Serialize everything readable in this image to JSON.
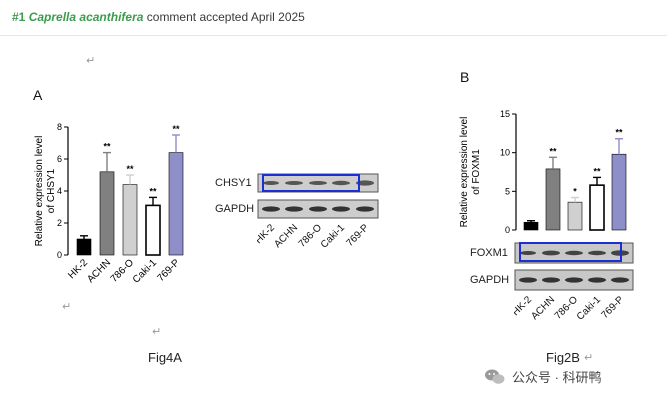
{
  "header": {
    "number": "#1",
    "species": "Caprella acanthifera",
    "rest": "comment accepted April 2025"
  },
  "return_glyph": "↵",
  "fig_a": {
    "letter": "A",
    "caption": "Fig4A",
    "ylabel_line1": "Relative expression level",
    "ylabel_line2": "of CHSY1",
    "yticks": [
      "0",
      "2",
      "4",
      "6",
      "8"
    ],
    "categories": [
      "HK-2",
      "ACHN",
      "786-O",
      "Caki-1",
      "769-P"
    ],
    "values": [
      1.0,
      5.2,
      4.4,
      3.1,
      6.4
    ],
    "errors": [
      0.2,
      1.2,
      0.6,
      0.5,
      1.1
    ],
    "sig": [
      "",
      "**",
      "**",
      "**",
      "**"
    ],
    "ylim": [
      0,
      8
    ],
    "colors": [
      "#000000",
      "#808080",
      "#d0d0d0",
      "#ffffff",
      "#8e8ec8"
    ],
    "blot_labels": [
      "CHSY1",
      "GAPDH"
    ]
  },
  "fig_b": {
    "letter": "B",
    "caption": "Fig2B",
    "ylabel_line1": "Relative expression level",
    "ylabel_line2": "of FOXM1",
    "yticks": [
      "0",
      "5",
      "10",
      "15"
    ],
    "categories": [
      "HK-2",
      "ACHN",
      "786-O",
      "Caki-1",
      "769-P"
    ],
    "values": [
      1.0,
      7.9,
      3.6,
      5.8,
      9.8
    ],
    "errors": [
      0.2,
      1.5,
      0.6,
      1.0,
      2.0
    ],
    "sig": [
      "",
      "**",
      "*",
      "**",
      "**"
    ],
    "ylim": [
      0,
      15
    ],
    "colors": [
      "#000000",
      "#808080",
      "#d0d0d0",
      "#ffffff",
      "#8e8ec8"
    ],
    "blot_labels": [
      "FOXM1",
      "GAPDH"
    ]
  },
  "watermark": {
    "text": "公众号 · 科研鸭"
  },
  "colors": {
    "accent_green": "#3c9b4d",
    "highlight_blue": "#1a2fd6"
  }
}
